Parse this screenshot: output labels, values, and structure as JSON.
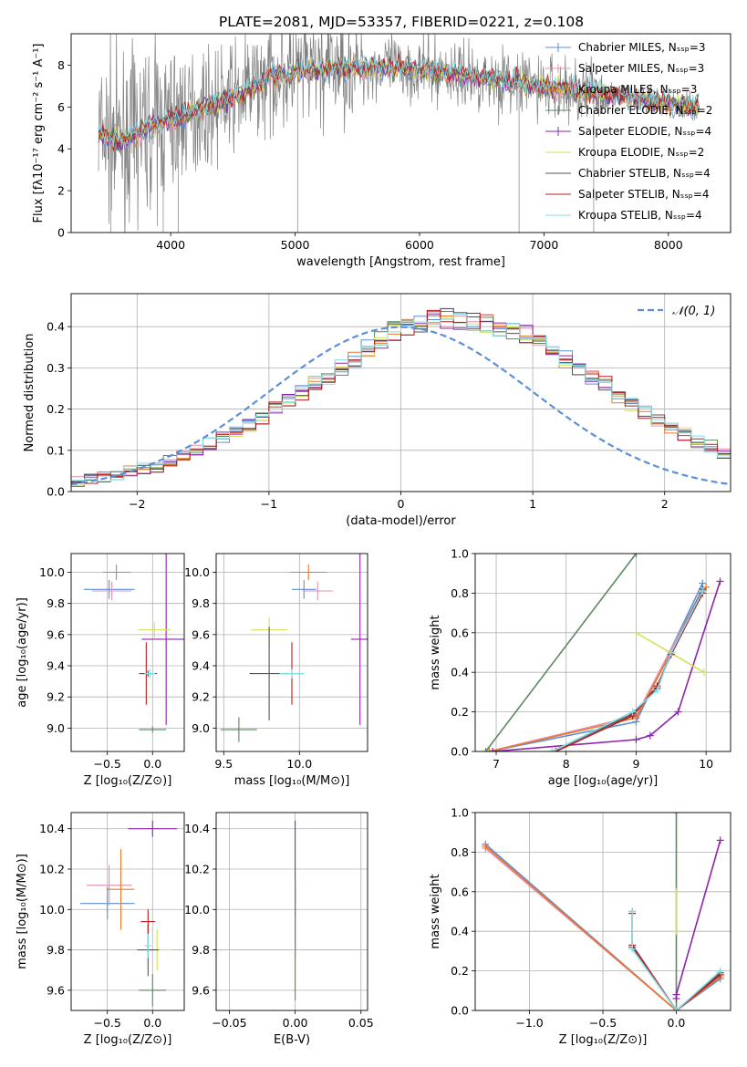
{
  "figure": {
    "title": "PLATE=2081, MJD=53357, FIBERID=0221, z=0.108"
  },
  "colors": {
    "chabrier_miles": "#5b8fd9",
    "salpeter_miles": "#e58fb1",
    "kroupa_miles": "#e8782a",
    "chabrier_elodie": "#5a8a5f",
    "salpeter_elodie": "#8e24aa",
    "kroupa_elodie": "#d4e157",
    "chabrier_stelib": "#555555",
    "salpeter_stelib": "#b71c1c",
    "kroupa_stelib": "#80deea",
    "spectrum": "#808080",
    "gaussian": "#5b8fd9"
  },
  "chart_data": [
    {
      "id": "spectrum",
      "type": "line",
      "xlabel": "wavelength [Angstrom, rest frame]",
      "ylabel": "Flux [fλ10⁻¹⁷ erg cm⁻² s⁻¹ A⁻¹]",
      "xlim": [
        3200,
        8500
      ],
      "ylim": [
        0,
        9.5
      ],
      "xticks": [
        4000,
        5000,
        6000,
        7000,
        8000
      ],
      "yticks": [
        0,
        2,
        4,
        6,
        8
      ],
      "grid": false,
      "legend_position": "top-right",
      "legend": [
        {
          "label": "Chabrier MILES, Nₛₛₚ=3",
          "color_key": "chabrier_miles",
          "marker": "+"
        },
        {
          "label": "Salpeter MILES, Nₛₛₚ=3",
          "color_key": "salpeter_miles",
          "marker": "+"
        },
        {
          "label": "Kroupa MILES, Nₛₛₚ=3",
          "color_key": "kroupa_miles",
          "marker": "+"
        },
        {
          "label": "Chabrier ELODIE, Nₛₛₚ=2",
          "color_key": "chabrier_elodie",
          "marker": "+"
        },
        {
          "label": "Salpeter ELODIE, Nₛₛₚ=4",
          "color_key": "salpeter_elodie",
          "marker": "+"
        },
        {
          "label": "Kroupa ELODIE, Nₛₛₚ=2",
          "color_key": "kroupa_elodie",
          "marker": ""
        },
        {
          "label": "Chabrier STELIB, Nₛₛₚ=4",
          "color_key": "chabrier_stelib",
          "marker": ""
        },
        {
          "label": "Salpeter STELIB, Nₛₛₚ=4",
          "color_key": "salpeter_stelib",
          "marker": ""
        },
        {
          "label": "Kroupa STELIB, Nₛₛₚ=4",
          "color_key": "kroupa_stelib",
          "marker": ""
        }
      ],
      "spectrum_trend": {
        "x": [
          3420,
          3600,
          3800,
          4000,
          4200,
          4400,
          4600,
          4800,
          5000,
          5200,
          5500,
          6000,
          6500,
          7000,
          7500,
          8000,
          8250
        ],
        "y": [
          4.8,
          4.3,
          5.0,
          5.4,
          5.8,
          6.2,
          6.7,
          7.5,
          7.6,
          7.8,
          7.9,
          7.8,
          7.4,
          7.0,
          6.6,
          6.2,
          6.0
        ]
      }
    },
    {
      "id": "residuals",
      "type": "histogram",
      "xlabel": "(data-model)/error",
      "ylabel": "Normed distribution",
      "xlim": [
        -2.5,
        2.5
      ],
      "ylim": [
        0,
        0.48
      ],
      "xticks": [
        -2,
        -1,
        0,
        1,
        2
      ],
      "yticks": [
        0.0,
        0.1,
        0.2,
        0.3,
        0.4
      ],
      "grid": true,
      "legend_position": "top-right",
      "gaussian_label": "𝒩(0, 1)",
      "gaussian": {
        "mean": 0,
        "sigma": 1
      },
      "bin_width": 0.1,
      "bins_from": -2.5,
      "base": [
        0.025,
        0.03,
        0.035,
        0.04,
        0.05,
        0.055,
        0.06,
        0.075,
        0.085,
        0.1,
        0.115,
        0.13,
        0.15,
        0.16,
        0.18,
        0.2,
        0.22,
        0.24,
        0.26,
        0.28,
        0.3,
        0.32,
        0.35,
        0.37,
        0.39,
        0.4,
        0.41,
        0.42,
        0.42,
        0.41,
        0.41,
        0.41,
        0.4,
        0.39,
        0.38,
        0.36,
        0.34,
        0.32,
        0.3,
        0.28,
        0.26,
        0.23,
        0.21,
        0.19,
        0.17,
        0.15,
        0.14,
        0.12,
        0.11,
        0.09
      ]
    },
    {
      "id": "age_vs_Z",
      "type": "errorbar",
      "xlabel": "Z [log₁₀(Z/Z⊙)]",
      "ylabel": "age  [log₁₀(age/yr)]",
      "xlim": [
        -0.9,
        0.35
      ],
      "ylim": [
        8.85,
        10.12
      ],
      "xticks": [
        -0.5,
        0.0
      ],
      "yticks": [
        9.0,
        9.2,
        9.4,
        9.6,
        9.8,
        10.0
      ],
      "grid": true,
      "points": [
        {
          "k": "chabrier_miles",
          "x": -0.48,
          "y": 9.89,
          "xerr": 0.28,
          "yerr": 0.06
        },
        {
          "k": "salpeter_miles",
          "x": -0.45,
          "y": 9.88,
          "xerr": 0.22,
          "yerr": 0.06
        },
        {
          "k": "kroupa_miles",
          "x": -0.4,
          "y": 10.0,
          "xerr": 0.15,
          "yerr": 0.05
        },
        {
          "k": "chabrier_elodie",
          "x": 0.0,
          "y": 8.99,
          "xerr": 0.15,
          "yerr": 0.02
        },
        {
          "k": "salpeter_elodie",
          "x": 0.15,
          "y": 9.57,
          "xerr": 0.27,
          "yerr": 0.55
        },
        {
          "k": "kroupa_elodie",
          "x": 0.02,
          "y": 9.63,
          "xerr": 0.18,
          "yerr": 0.05
        },
        {
          "k": "chabrier_stelib",
          "x": -0.05,
          "y": 9.35,
          "xerr": 0.1,
          "yerr": 0.02
        },
        {
          "k": "salpeter_stelib",
          "x": -0.07,
          "y": 9.35,
          "xerr": 0.04,
          "yerr": 0.2
        },
        {
          "k": "kroupa_stelib",
          "x": -0.03,
          "y": 9.35,
          "xerr": 0.06,
          "yerr": 0.03
        }
      ]
    },
    {
      "id": "age_vs_mass",
      "type": "errorbar",
      "xlabel": "mass [log₁₀(M/M⊙)]",
      "ylabel": "",
      "xlim": [
        9.45,
        10.45
      ],
      "ylim": [
        8.85,
        10.12
      ],
      "xticks": [
        9.5,
        10.0
      ],
      "yticks": [
        9.0,
        9.2,
        9.4,
        9.6,
        9.8,
        10.0
      ],
      "grid": true,
      "points": [
        {
          "k": "chabrier_miles",
          "x": 10.03,
          "y": 9.89,
          "xerr": 0.08,
          "yerr": 0.06
        },
        {
          "k": "salpeter_miles",
          "x": 10.12,
          "y": 9.88,
          "xerr": 0.1,
          "yerr": 0.06
        },
        {
          "k": "kroupa_miles",
          "x": 10.06,
          "y": 10.0,
          "xerr": 0.12,
          "yerr": 0.05
        },
        {
          "k": "chabrier_elodie",
          "x": 9.6,
          "y": 8.99,
          "xerr": 0.12,
          "yerr": 0.08
        },
        {
          "k": "salpeter_elodie",
          "x": 10.4,
          "y": 9.57,
          "xerr": 0.06,
          "yerr": 0.55
        },
        {
          "k": "kroupa_elodie",
          "x": 9.8,
          "y": 9.63,
          "xerr": 0.12,
          "yerr": 0.08
        },
        {
          "k": "chabrier_stelib",
          "x": 9.8,
          "y": 9.35,
          "xerr": 0.13,
          "yerr": 0.3
        },
        {
          "k": "salpeter_stelib",
          "x": 9.95,
          "y": 9.35,
          "xerr": 0.06,
          "yerr": 0.2
        },
        {
          "k": "kroupa_stelib",
          "x": 9.95,
          "y": 9.35,
          "xerr": 0.08,
          "yerr": 0.03
        }
      ]
    },
    {
      "id": "massweight_vs_age",
      "type": "line",
      "xlabel": "age  [log₁₀(age/yr)]",
      "ylabel": "mass weight",
      "xlim": [
        6.7,
        10.35
      ],
      "ylim": [
        0,
        1.0
      ],
      "xticks": [
        7,
        8,
        9,
        10
      ],
      "yticks": [
        0.0,
        0.2,
        0.4,
        0.6,
        0.8,
        1.0
      ],
      "grid": true,
      "series": [
        {
          "k": "chabrier_elodie",
          "x": [
            6.85,
            9.0
          ],
          "y": [
            0.0,
            1.0
          ]
        },
        {
          "k": "chabrier_miles",
          "x": [
            6.9,
            9.0,
            9.95
          ],
          "y": [
            0.0,
            0.15,
            0.85
          ]
        },
        {
          "k": "salpeter_miles",
          "x": [
            6.9,
            9.0,
            9.95
          ],
          "y": [
            0.0,
            0.18,
            0.82
          ]
        },
        {
          "k": "kroupa_miles",
          "x": [
            6.9,
            9.0,
            10.0
          ],
          "y": [
            0.0,
            0.17,
            0.83
          ]
        },
        {
          "k": "salpeter_elodie",
          "x": [
            6.95,
            9.0,
            9.2,
            9.6,
            10.2
          ],
          "y": [
            0.0,
            0.06,
            0.08,
            0.2,
            0.86
          ]
        },
        {
          "k": "kroupa_elodie",
          "x": [
            9.0,
            9.97
          ],
          "y": [
            0.6,
            0.4
          ]
        },
        {
          "k": "chabrier_stelib",
          "x": [
            7.8,
            8.95,
            9.3,
            9.5,
            9.95
          ],
          "y": [
            0.0,
            0.19,
            0.32,
            0.5,
            0.82
          ]
        },
        {
          "k": "salpeter_stelib",
          "x": [
            7.85,
            8.95,
            9.3,
            9.5,
            9.95
          ],
          "y": [
            0.0,
            0.18,
            0.33,
            0.49,
            0.8
          ]
        },
        {
          "k": "kroupa_stelib",
          "x": [
            7.8,
            8.95,
            9.3,
            9.5,
            9.95
          ],
          "y": [
            0.0,
            0.2,
            0.31,
            0.5,
            0.81
          ]
        }
      ]
    },
    {
      "id": "mass_vs_Z",
      "type": "errorbar",
      "xlabel": "Z [log₁₀(Z/Z⊙)]",
      "ylabel": "mass [log₁₀(M/M⊙)]",
      "xlim": [
        -0.9,
        0.35
      ],
      "ylim": [
        9.5,
        10.48
      ],
      "xticks": [
        -0.5,
        0.0
      ],
      "yticks": [
        9.6,
        9.8,
        10.0,
        10.2,
        10.4
      ],
      "grid": true,
      "points": [
        {
          "k": "chabrier_miles",
          "x": -0.5,
          "y": 10.03,
          "xerr": 0.3,
          "yerr": 0.08
        },
        {
          "k": "salpeter_miles",
          "x": -0.48,
          "y": 10.12,
          "xerr": 0.25,
          "yerr": 0.1
        },
        {
          "k": "kroupa_miles",
          "x": -0.35,
          "y": 10.1,
          "xerr": 0.15,
          "yerr": 0.2
        },
        {
          "k": "chabrier_elodie",
          "x": 0.0,
          "y": 9.6,
          "xerr": 0.15,
          "yerr": 0.08
        },
        {
          "k": "salpeter_elodie",
          "x": 0.0,
          "y": 10.4,
          "xerr": 0.27,
          "yerr": 0.04
        },
        {
          "k": "kroupa_elodie",
          "x": 0.05,
          "y": 9.8,
          "xerr": 0.15,
          "yerr": 0.1
        },
        {
          "k": "chabrier_stelib",
          "x": -0.05,
          "y": 9.8,
          "xerr": 0.12,
          "yerr": 0.13
        },
        {
          "k": "salpeter_stelib",
          "x": -0.05,
          "y": 9.94,
          "xerr": 0.08,
          "yerr": 0.06
        },
        {
          "k": "kroupa_stelib",
          "x": -0.05,
          "y": 9.82,
          "xerr": 0.04,
          "yerr": 0.06
        }
      ]
    },
    {
      "id": "mass_vs_ebv",
      "type": "errorbar",
      "xlabel": "E(B-V)",
      "ylabel": "",
      "xlim": [
        -0.06,
        0.055
      ],
      "ylim": [
        9.5,
        10.48
      ],
      "xticks": [
        -0.05,
        0.0,
        0.05
      ],
      "yticks": [
        9.6,
        9.8,
        10.0,
        10.2,
        10.4
      ],
      "grid": true,
      "points": [
        {
          "k": "salpeter_elodie",
          "x": 0.0,
          "y": 10.1,
          "xerr": 0.0,
          "yerr": 0.34
        },
        {
          "k": "salpeter_stelib",
          "x": 0.0,
          "y": 10.05,
          "xerr": 0.0,
          "yerr": 0.08
        },
        {
          "k": "kroupa_elodie",
          "x": 0.0,
          "y": 9.7,
          "xerr": 0.0,
          "yerr": 0.12
        },
        {
          "k": "chabrier_elodie",
          "x": 0.0,
          "y": 9.85,
          "xerr": 0.0,
          "yerr": 0.3
        }
      ]
    },
    {
      "id": "massweight_vs_Z",
      "type": "line",
      "xlabel": "Z [log₁₀(Z/Z⊙)]",
      "ylabel": "mass weight",
      "xlim": [
        -1.37,
        0.37
      ],
      "ylim": [
        0,
        1.0
      ],
      "xticks": [
        -1.0,
        -0.5,
        0.0
      ],
      "yticks": [
        0.0,
        0.2,
        0.4,
        0.6,
        0.8,
        1.0
      ],
      "grid": true,
      "series": [
        {
          "k": "chabrier_miles",
          "x": [
            -1.3,
            0.0,
            0.3
          ],
          "y": [
            0.84,
            0.0,
            0.16
          ]
        },
        {
          "k": "salpeter_miles",
          "x": [
            -1.3,
            0.0,
            0.3
          ],
          "y": [
            0.82,
            0.0,
            0.18
          ]
        },
        {
          "k": "kroupa_miles",
          "x": [
            -1.3,
            0.0,
            0.3
          ],
          "y": [
            0.83,
            0.0,
            0.17
          ]
        },
        {
          "k": "chabrier_elodie",
          "x": [
            0.0,
            0.0
          ],
          "y": [
            0.0,
            1.0
          ]
        },
        {
          "k": "salpeter_elodie",
          "x": [
            0.0,
            0.0,
            0.3
          ],
          "y": [
            0.06,
            0.08,
            0.86
          ]
        },
        {
          "k": "kroupa_elodie",
          "x": [
            0.0,
            0.0
          ],
          "y": [
            0.4,
            0.6
          ]
        },
        {
          "k": "chabrier_stelib",
          "x": [
            -0.3,
            -0.3,
            0.0,
            0.3
          ],
          "y": [
            0.5,
            0.32,
            0.0,
            0.19
          ]
        },
        {
          "k": "salpeter_stelib",
          "x": [
            -0.3,
            -0.3,
            0.0,
            0.3
          ],
          "y": [
            0.49,
            0.33,
            0.0,
            0.18
          ]
        },
        {
          "k": "kroupa_stelib",
          "x": [
            -0.3,
            -0.3,
            0.0,
            0.3
          ],
          "y": [
            0.5,
            0.31,
            0.0,
            0.2
          ]
        }
      ]
    }
  ]
}
